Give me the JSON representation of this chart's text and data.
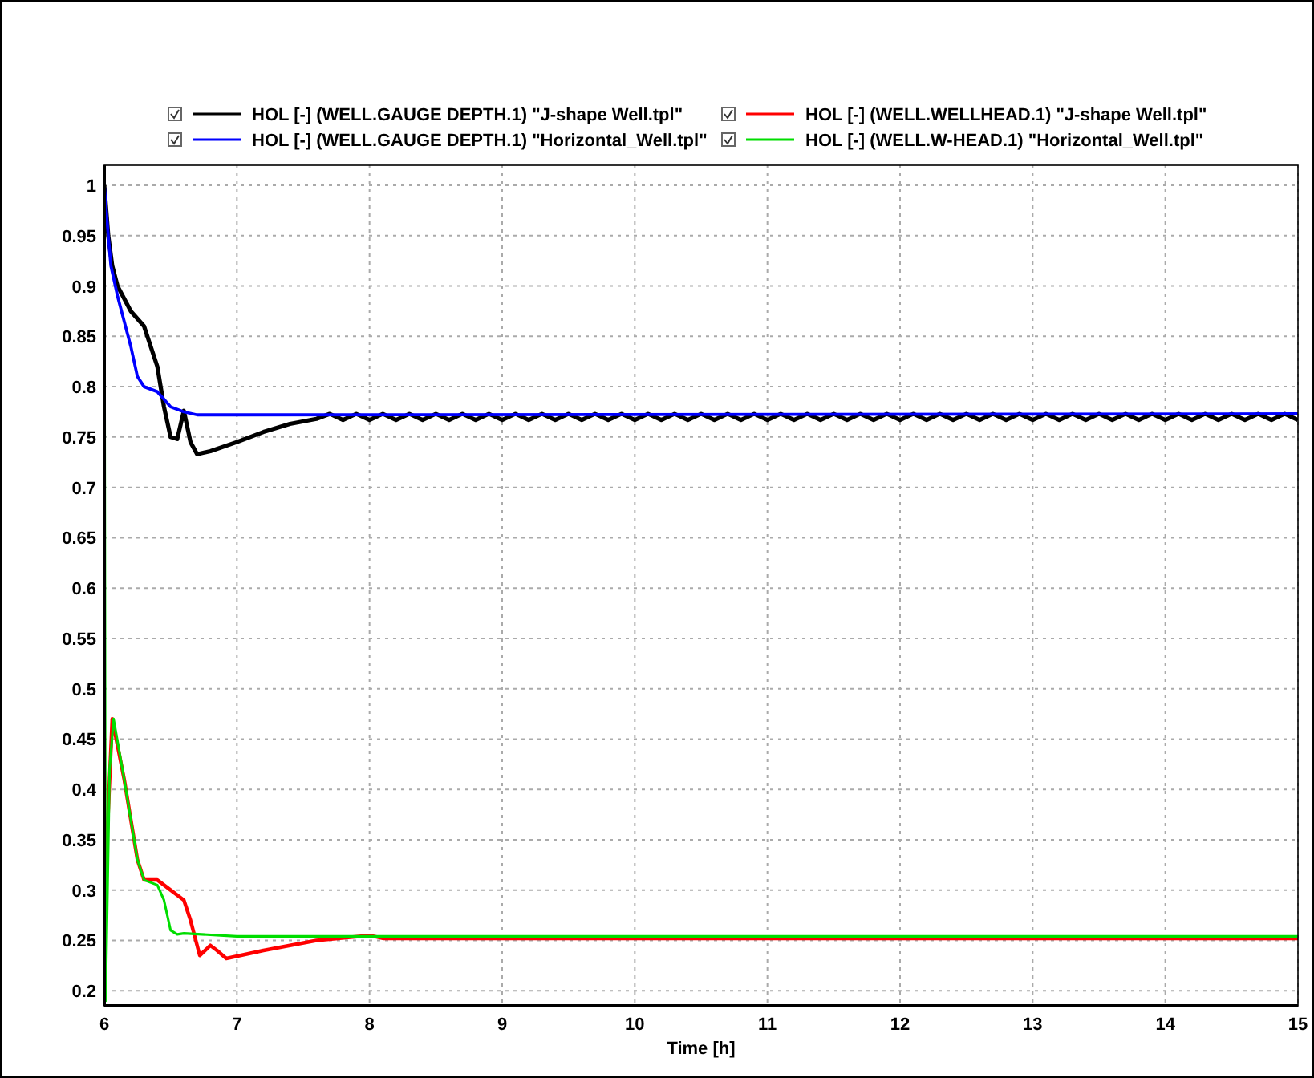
{
  "chart_data": {
    "type": "line",
    "xlabel": "Time [h]",
    "xlim": [
      6,
      15
    ],
    "xticks": [
      6,
      7,
      8,
      9,
      10,
      11,
      12,
      13,
      14,
      15
    ],
    "ylim": [
      0.185,
      1.02
    ],
    "yticks": [
      0.2,
      0.25,
      0.3,
      0.35,
      0.4,
      0.45,
      0.5,
      0.55,
      0.6,
      0.65,
      0.7,
      0.75,
      0.8,
      0.85,
      0.9,
      0.95,
      1
    ],
    "grid": true,
    "legend": "top",
    "line_style": "solid",
    "series": [
      {
        "name": "HOL [-] (WELL.GAUGE DEPTH.1) \"J-shape Well.tpl\"",
        "color": "#000000",
        "x": [
          6,
          6.03,
          6.06,
          6.1,
          6.2,
          6.3,
          6.4,
          6.45,
          6.5,
          6.55,
          6.6,
          6.65,
          6.7,
          6.8,
          7,
          7.2,
          7.4,
          7.6,
          7.7,
          7.8,
          7.9,
          8,
          8.1,
          8.2,
          8.3,
          8.4,
          8.5,
          8.6,
          8.7,
          8.8,
          8.9,
          9,
          9.1,
          9.2,
          9.3,
          9.4,
          9.5,
          9.6,
          9.7,
          9.8,
          9.9,
          10,
          10.1,
          10.2,
          10.3,
          10.4,
          10.5,
          10.6,
          10.7,
          10.8,
          10.9,
          11,
          11.1,
          11.2,
          11.3,
          11.4,
          11.5,
          11.6,
          11.7,
          11.8,
          11.9,
          12,
          12.1,
          12.2,
          12.3,
          12.4,
          12.5,
          12.6,
          12.7,
          12.8,
          12.9,
          13,
          13.1,
          13.2,
          13.3,
          13.4,
          13.5,
          13.6,
          13.7,
          13.8,
          13.9,
          14,
          14.1,
          14.2,
          14.3,
          14.4,
          14.5,
          14.6,
          14.7,
          14.8,
          14.9,
          15
        ],
        "values": [
          1,
          0.95,
          0.92,
          0.9,
          0.875,
          0.86,
          0.82,
          0.78,
          0.75,
          0.748,
          0.776,
          0.745,
          0.733,
          0.736,
          0.745,
          0.755,
          0.763,
          0.768,
          0.773,
          0.767,
          0.773,
          0.767,
          0.773,
          0.767,
          0.773,
          0.767,
          0.773,
          0.767,
          0.773,
          0.767,
          0.773,
          0.767,
          0.773,
          0.767,
          0.773,
          0.767,
          0.773,
          0.767,
          0.773,
          0.767,
          0.773,
          0.767,
          0.773,
          0.767,
          0.773,
          0.767,
          0.773,
          0.767,
          0.773,
          0.767,
          0.773,
          0.767,
          0.773,
          0.767,
          0.773,
          0.767,
          0.773,
          0.767,
          0.773,
          0.767,
          0.773,
          0.767,
          0.773,
          0.767,
          0.773,
          0.767,
          0.773,
          0.767,
          0.773,
          0.767,
          0.773,
          0.767,
          0.773,
          0.767,
          0.773,
          0.767,
          0.773,
          0.767,
          0.773,
          0.767,
          0.773,
          0.767,
          0.773,
          0.767,
          0.773,
          0.767,
          0.773,
          0.767,
          0.773,
          0.767,
          0.773,
          0.767
        ]
      },
      {
        "name": "HOL [-] (WELL.WELLHEAD.1) \"J-shape Well.tpl\"",
        "color": "#ff0000",
        "x": [
          6,
          6.02,
          6.06,
          6.15,
          6.25,
          6.3,
          6.4,
          6.5,
          6.6,
          6.65,
          6.72,
          6.8,
          6.85,
          6.92,
          7.2,
          7.6,
          8,
          8.1,
          15
        ],
        "values": [
          0.2,
          0.35,
          0.47,
          0.41,
          0.33,
          0.31,
          0.31,
          0.3,
          0.29,
          0.27,
          0.235,
          0.245,
          0.24,
          0.232,
          0.24,
          0.25,
          0.255,
          0.252,
          0.252
        ]
      },
      {
        "name": "HOL [-] (WELL.GAUGE DEPTH.1) \"Horizontal_Well.tpl\"",
        "color": "#0000ff",
        "x": [
          6,
          6.03,
          6.05,
          6.1,
          6.2,
          6.25,
          6.3,
          6.4,
          6.5,
          6.6,
          6.7,
          7,
          15
        ],
        "values": [
          1,
          0.95,
          0.92,
          0.89,
          0.84,
          0.81,
          0.8,
          0.795,
          0.78,
          0.775,
          0.772,
          0.772,
          0.773
        ]
      },
      {
        "name": "HOL [-] (WELL.W-HEAD.1) \"Horizontal_Well.tpl\"",
        "color": "#00dd00",
        "x": [
          6,
          6.01,
          6.04,
          6.07,
          6.15,
          6.25,
          6.3,
          6.4,
          6.45,
          6.5,
          6.55,
          6.6,
          7,
          15
        ],
        "values": [
          1,
          0.19,
          0.42,
          0.47,
          0.41,
          0.33,
          0.31,
          0.305,
          0.29,
          0.26,
          0.256,
          0.257,
          0.254,
          0.254
        ]
      }
    ]
  }
}
